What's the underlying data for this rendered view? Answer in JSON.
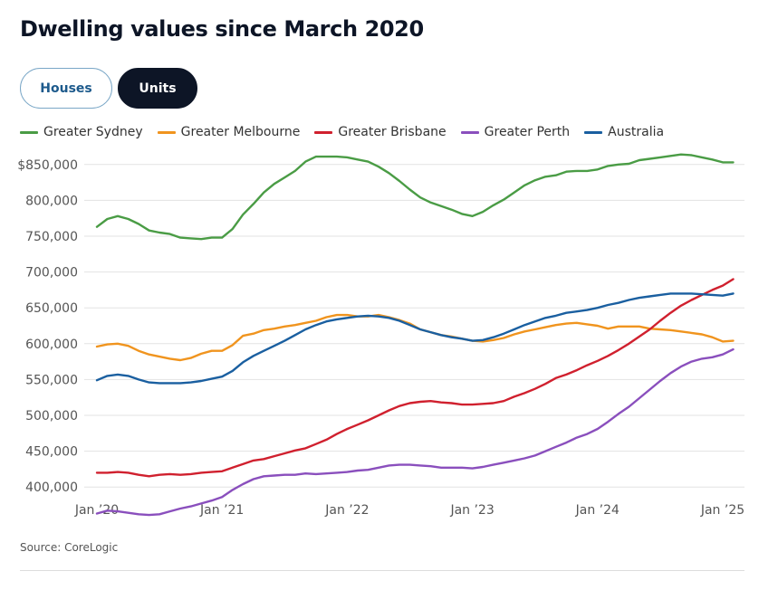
{
  "title": "Dwelling values since March 2020",
  "toggles": {
    "houses": "Houses",
    "units": "Units",
    "active": "units"
  },
  "source": "Source: CoreLogic",
  "chart_data": {
    "type": "line",
    "title": "Dwelling values since March 2020",
    "xlabel": "",
    "ylabel": "",
    "ylim": [
      375000,
      875000
    ],
    "xlim": [
      "2020-01",
      "2025-02"
    ],
    "grid": true,
    "legend_position": "top",
    "yticks": [
      {
        "value": 400000,
        "label": "400,000"
      },
      {
        "value": 450000,
        "label": "450,000"
      },
      {
        "value": 500000,
        "label": "500,000"
      },
      {
        "value": 550000,
        "label": "550,000"
      },
      {
        "value": 600000,
        "label": "600,000"
      },
      {
        "value": 650000,
        "label": "650,000"
      },
      {
        "value": 700000,
        "label": "700,000"
      },
      {
        "value": 750000,
        "label": "750,000"
      },
      {
        "value": 800000,
        "label": "800,000"
      },
      {
        "value": 850000,
        "label": "$850,000"
      }
    ],
    "xticks": [
      {
        "value": "2020-01",
        "label": "Jan ’20"
      },
      {
        "value": "2021-01",
        "label": "Jan ’21"
      },
      {
        "value": "2022-01",
        "label": "Jan ’22"
      },
      {
        "value": "2023-01",
        "label": "Jan ’23"
      },
      {
        "value": "2024-01",
        "label": "Jan ’24"
      },
      {
        "value": "2025-01",
        "label": "Jan ’25"
      }
    ],
    "x": [
      "2020-01",
      "2020-02",
      "2020-03",
      "2020-04",
      "2020-05",
      "2020-06",
      "2020-07",
      "2020-08",
      "2020-09",
      "2020-10",
      "2020-11",
      "2020-12",
      "2021-01",
      "2021-02",
      "2021-03",
      "2021-04",
      "2021-05",
      "2021-06",
      "2021-07",
      "2021-08",
      "2021-09",
      "2021-10",
      "2021-11",
      "2021-12",
      "2022-01",
      "2022-02",
      "2022-03",
      "2022-04",
      "2022-05",
      "2022-06",
      "2022-07",
      "2022-08",
      "2022-09",
      "2022-10",
      "2022-11",
      "2022-12",
      "2023-01",
      "2023-02",
      "2023-03",
      "2023-04",
      "2023-05",
      "2023-06",
      "2023-07",
      "2023-08",
      "2023-09",
      "2023-10",
      "2023-11",
      "2023-12",
      "2024-01",
      "2024-02",
      "2024-03",
      "2024-04",
      "2024-05",
      "2024-06",
      "2024-07",
      "2024-08",
      "2024-09",
      "2024-10",
      "2024-11",
      "2024-12",
      "2025-01",
      "2025-02"
    ],
    "series": [
      {
        "name": "Greater Sydney",
        "color": "#4a9c45",
        "values": [
          763000,
          774000,
          778000,
          774000,
          767000,
          758000,
          755000,
          753000,
          748000,
          747000,
          746000,
          748000,
          748000,
          760000,
          780000,
          795000,
          811000,
          823000,
          832000,
          841000,
          854000,
          861000,
          861000,
          861000,
          860000,
          857000,
          854000,
          847000,
          838000,
          827000,
          815000,
          804000,
          797000,
          792000,
          787000,
          781000,
          778000,
          784000,
          793000,
          801000,
          811000,
          821000,
          828000,
          833000,
          835000,
          840000,
          841000,
          841000,
          843000,
          848000,
          850000,
          851000,
          856000,
          858000,
          860000,
          862000,
          864000,
          863000,
          860000,
          857000,
          853000,
          853000
        ]
      },
      {
        "name": "Greater Melbourne",
        "color": "#f0941e",
        "values": [
          596000,
          599000,
          600000,
          597000,
          590000,
          585000,
          582000,
          579000,
          577000,
          580000,
          586000,
          590000,
          590000,
          598000,
          611000,
          614000,
          619000,
          621000,
          624000,
          626000,
          629000,
          632000,
          637000,
          640000,
          640000,
          638000,
          638000,
          640000,
          637000,
          633000,
          628000,
          620000,
          616000,
          612000,
          610000,
          607000,
          604000,
          603000,
          605000,
          608000,
          613000,
          617000,
          620000,
          623000,
          626000,
          628000,
          629000,
          627000,
          625000,
          621000,
          624000,
          624000,
          624000,
          621000,
          620000,
          619000,
          617000,
          615000,
          613000,
          609000,
          603000,
          604000
        ]
      },
      {
        "name": "Greater Brisbane",
        "color": "#d0202e",
        "values": [
          420000,
          420000,
          421000,
          420000,
          417000,
          415000,
          417000,
          418000,
          417000,
          418000,
          420000,
          421000,
          422000,
          427000,
          432000,
          437000,
          439000,
          443000,
          447000,
          451000,
          454000,
          460000,
          466000,
          474000,
          481000,
          487000,
          493000,
          500000,
          507000,
          513000,
          517000,
          519000,
          520000,
          518000,
          517000,
          515000,
          515000,
          516000,
          517000,
          520000,
          526000,
          531000,
          537000,
          544000,
          552000,
          557000,
          563000,
          570000,
          576000,
          583000,
          591000,
          600000,
          610000,
          620000,
          632000,
          643000,
          653000,
          661000,
          668000,
          675000,
          681000,
          690000
        ]
      },
      {
        "name": "Greater Perth",
        "color": "#8a4fbd",
        "values": [
          363000,
          367000,
          366000,
          364000,
          362000,
          361000,
          362000,
          366000,
          370000,
          373000,
          377000,
          381000,
          386000,
          396000,
          404000,
          411000,
          415000,
          416000,
          417000,
          417000,
          419000,
          418000,
          419000,
          420000,
          421000,
          423000,
          424000,
          427000,
          430000,
          431000,
          431000,
          430000,
          429000,
          427000,
          427000,
          427000,
          426000,
          428000,
          431000,
          434000,
          437000,
          440000,
          444000,
          450000,
          456000,
          462000,
          469000,
          474000,
          481000,
          491000,
          502000,
          512000,
          524000,
          536000,
          548000,
          559000,
          568000,
          575000,
          579000,
          581000,
          585000,
          592000
        ]
      },
      {
        "name": "Australia",
        "color": "#1a5fa0",
        "values": [
          549000,
          555000,
          557000,
          555000,
          550000,
          546000,
          545000,
          545000,
          545000,
          546000,
          548000,
          551000,
          554000,
          562000,
          574000,
          583000,
          590000,
          597000,
          604000,
          612000,
          620000,
          626000,
          631000,
          634000,
          636000,
          638000,
          639000,
          638000,
          636000,
          632000,
          626000,
          620000,
          616000,
          612000,
          609000,
          607000,
          604000,
          605000,
          609000,
          614000,
          620000,
          626000,
          631000,
          636000,
          639000,
          643000,
          645000,
          647000,
          650000,
          654000,
          657000,
          661000,
          664000,
          666000,
          668000,
          670000,
          670000,
          670000,
          669000,
          668000,
          667000,
          670000
        ]
      }
    ]
  }
}
